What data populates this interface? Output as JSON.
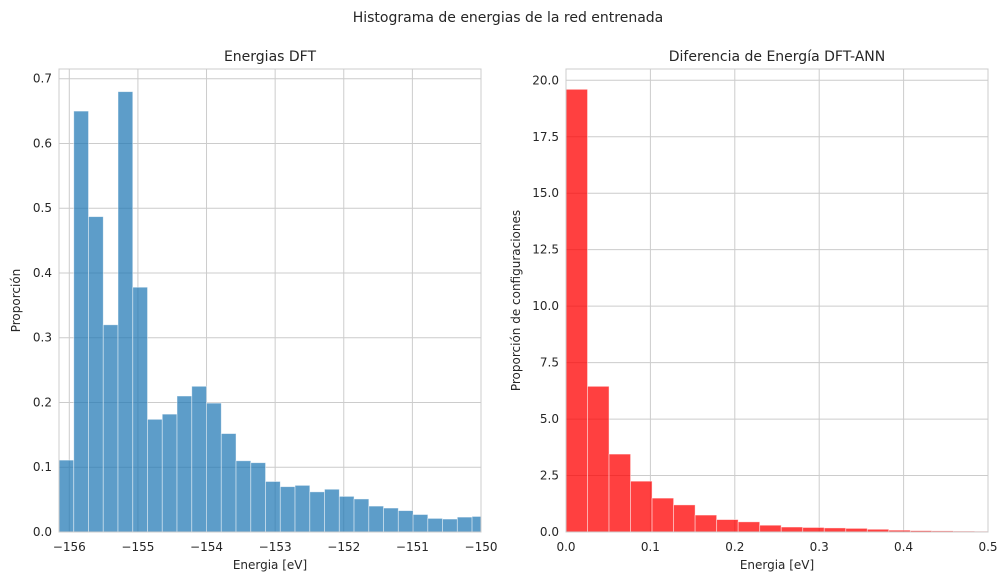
{
  "figure": {
    "suptitle": "Histograma de energias de la red entrenada"
  },
  "chart_data": [
    {
      "type": "bar",
      "title": "Energias DFT",
      "xlabel": "Energia [eV]",
      "ylabel": "Proporción",
      "xlim": [
        -156.15,
        -150.0
      ],
      "ylim": [
        0,
        0.715
      ],
      "xticks": [
        -156,
        -155,
        -154,
        -153,
        -152,
        -151,
        -150
      ],
      "xtick_labels": [
        "−156",
        "−155",
        "−154",
        "−153",
        "−152",
        "−151",
        "−150"
      ],
      "yticks": [
        0.0,
        0.1,
        0.2,
        0.3,
        0.4,
        0.5,
        0.6,
        0.7
      ],
      "ytick_labels": [
        "0.0",
        "0.1",
        "0.2",
        "0.3",
        "0.4",
        "0.5",
        "0.6",
        "0.7"
      ],
      "grid": true,
      "color": "#1f77b4",
      "bin_edges": [
        -156.15,
        -155.935,
        -155.72,
        -155.505,
        -155.29,
        -155.075,
        -154.86,
        -154.645,
        -154.43,
        -154.215,
        -154.0,
        -153.785,
        -153.57,
        -153.355,
        -153.14,
        -152.925,
        -152.71,
        -152.495,
        -152.28,
        -152.065,
        -151.85,
        -151.635,
        -151.42,
        -151.205,
        -150.99,
        -150.775,
        -150.56,
        -150.345,
        -150.13,
        -149.915
      ],
      "values": [
        0.111,
        0.65,
        0.487,
        0.32,
        0.68,
        0.378,
        0.174,
        0.182,
        0.21,
        0.225,
        0.199,
        0.152,
        0.11,
        0.107,
        0.078,
        0.07,
        0.072,
        0.062,
        0.066,
        0.055,
        0.051,
        0.04,
        0.037,
        0.033,
        0.027,
        0.021,
        0.02,
        0.023,
        0.024
      ]
    },
    {
      "type": "bar",
      "title": "Diferencia de Energía DFT-ANN",
      "xlabel": "Energia [eV]",
      "ylabel": "Proporción de configuraciones",
      "xlim": [
        0.0,
        0.5
      ],
      "ylim": [
        0,
        20.5
      ],
      "xticks": [
        0.0,
        0.1,
        0.2,
        0.3,
        0.4,
        0.5
      ],
      "xtick_labels": [
        "0.0",
        "0.1",
        "0.2",
        "0.3",
        "0.4",
        "0.5"
      ],
      "yticks": [
        0.0,
        2.5,
        5.0,
        7.5,
        10.0,
        12.5,
        15.0,
        17.5,
        20.0
      ],
      "ytick_labels": [
        "0.0",
        "2.5",
        "5.0",
        "7.5",
        "10.0",
        "12.5",
        "15.0",
        "17.5",
        "20.0"
      ],
      "grid": true,
      "color": "#ff0000",
      "bin_edges": [
        0.0,
        0.0255,
        0.051,
        0.0765,
        0.102,
        0.1275,
        0.153,
        0.1785,
        0.204,
        0.2295,
        0.255,
        0.2805,
        0.306,
        0.3315,
        0.357,
        0.3825,
        0.408,
        0.4335,
        0.459,
        0.4845,
        0.51
      ],
      "values": [
        19.6,
        6.45,
        3.45,
        2.25,
        1.5,
        1.2,
        0.75,
        0.55,
        0.45,
        0.3,
        0.22,
        0.2,
        0.18,
        0.16,
        0.12,
        0.08,
        0.06,
        0.05,
        0.04,
        0.03
      ]
    }
  ]
}
